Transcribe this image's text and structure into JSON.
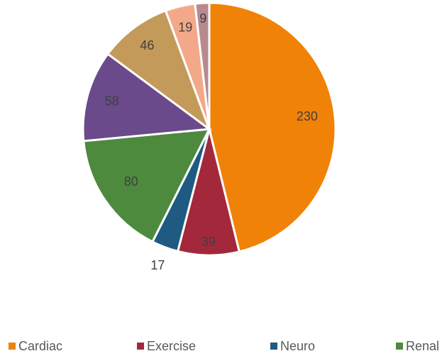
{
  "chart_data": {
    "type": "pie",
    "categories": [
      "Cardiac",
      "Exercise",
      "Neuro",
      "Renal",
      null,
      null,
      null,
      null
    ],
    "values": [
      230,
      39,
      17,
      80,
      58,
      46,
      19,
      9
    ],
    "colors": [
      "#f08208",
      "#a3283c",
      "#1e5a82",
      "#4e8a3e",
      "#6a4a8a",
      "#c49a5a",
      "#f4a88a",
      "#b88a90"
    ],
    "legend": "bottom"
  }
}
